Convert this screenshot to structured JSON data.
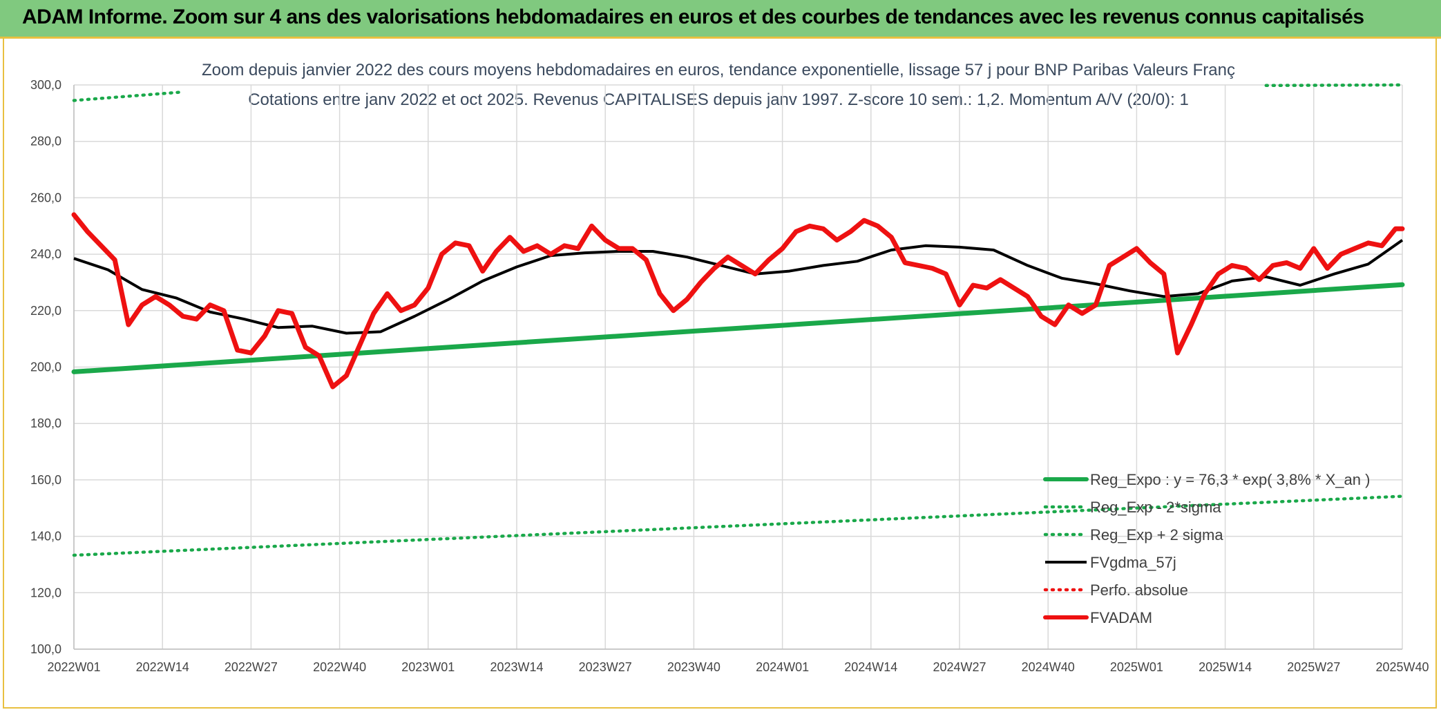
{
  "header": {
    "title": "ADAM Informe. Zoom sur 4 ans des valorisations hebdomadaires en euros et des courbes de tendances avec les revenus connus capitalisés"
  },
  "chart_data": {
    "type": "line",
    "title": "Zoom depuis janvier 2022 des cours moyens hebdomadaires en euros, tendance exponentielle, lissage 57 j pour BNP Paribas Valeurs Franç",
    "subtitle": "Cotations entre janv 2022 et oct 2025. Revenus CAPITALISES depuis janv 1997. Z-score 10 sem.: 1,2. Momentum A/V (20/0): 1",
    "ylim": [
      100,
      300
    ],
    "y_ticks": [
      "100,0",
      "120,0",
      "140,0",
      "160,0",
      "180,0",
      "200,0",
      "220,0",
      "240,0",
      "260,0",
      "280,0",
      "300,0"
    ],
    "x_tick_labels": [
      "2022W01",
      "2022W14",
      "2022W27",
      "2022W40",
      "2023W01",
      "2023W14",
      "2023W27",
      "2023W40",
      "2024W01",
      "2024W14",
      "2024W27",
      "2024W40",
      "2025W01",
      "2025W14",
      "2025W27",
      "2025W40"
    ],
    "grid": true,
    "legend_position": "bottom-right",
    "series": [
      {
        "name": "Reg_Expo : y = 76,3 * exp( 3,8% *  X_an )",
        "color": "#1aa84a",
        "style": "solid-thick",
        "x": [
          0,
          195
        ],
        "values": [
          198.3,
          229.2
        ]
      },
      {
        "name": "Reg_Exp - 2*sigma",
        "color": "#1aa84a",
        "style": "dotted",
        "x": [
          0,
          195
        ],
        "values": [
          133.3,
          154.2
        ]
      },
      {
        "name": "Reg_Exp + 2 sigma",
        "color": "#1aa84a",
        "style": "dotted",
        "segments": [
          {
            "x": [
              0,
              16
            ],
            "values": [
              294.5,
              297.5
            ]
          },
          {
            "x": [
              175,
              195
            ],
            "values": [
              299.8,
              300.0
            ]
          }
        ]
      },
      {
        "name": "FVgdma_57j",
        "color": "#000000",
        "style": "solid",
        "x": [
          0,
          5,
          10,
          15,
          20,
          25,
          30,
          35,
          40,
          45,
          50,
          55,
          60,
          65,
          70,
          75,
          80,
          85,
          90,
          95,
          100,
          105,
          110,
          115,
          120,
          125,
          130,
          135,
          140,
          145,
          150,
          155,
          160,
          165,
          170,
          175,
          180,
          185,
          190,
          195
        ],
        "values": [
          238.5,
          234.5,
          227.5,
          224.5,
          219.5,
          217.0,
          214.0,
          214.5,
          212.0,
          212.5,
          218.0,
          224.0,
          230.5,
          235.5,
          239.5,
          240.5,
          241.0,
          241.0,
          239.0,
          236.0,
          233.0,
          234.0,
          236.0,
          237.5,
          241.5,
          243.0,
          242.5,
          241.5,
          236.0,
          231.5,
          229.5,
          227.0,
          225.0,
          226.0,
          230.5,
          232.0,
          229.0,
          233.0,
          236.5,
          245.0
        ]
      },
      {
        "name": "Perfo. absolue",
        "color": "#ee1111",
        "style": "dotted",
        "x": [],
        "values": []
      },
      {
        "name": "FVADAM",
        "color": "#ee1111",
        "style": "solid-thick",
        "x": [
          0,
          2,
          4,
          6,
          8,
          10,
          12,
          14,
          16,
          18,
          20,
          22,
          24,
          26,
          28,
          30,
          32,
          34,
          36,
          38,
          40,
          42,
          44,
          46,
          48,
          50,
          52,
          54,
          56,
          58,
          60,
          62,
          64,
          66,
          68,
          70,
          72,
          74,
          76,
          78,
          80,
          82,
          84,
          86,
          88,
          90,
          92,
          94,
          96,
          98,
          100,
          102,
          104,
          106,
          108,
          110,
          112,
          114,
          116,
          118,
          120,
          122,
          124,
          126,
          128,
          130,
          132,
          134,
          136,
          138,
          140,
          142,
          144,
          146,
          148,
          150,
          152,
          154,
          156,
          158,
          160,
          162,
          164,
          166,
          168,
          170,
          172,
          174,
          176,
          178,
          180,
          182,
          184,
          186,
          188,
          190,
          192,
          194,
          195
        ],
        "values": [
          254,
          248,
          243,
          238,
          215,
          222,
          225,
          222,
          218,
          217,
          222,
          220,
          206,
          205,
          211,
          220,
          219,
          207,
          204,
          193,
          197,
          208,
          219,
          226,
          220,
          222,
          228,
          240,
          244,
          243,
          234,
          241,
          246,
          241,
          243,
          240,
          243,
          242,
          250,
          245,
          242,
          242,
          238,
          226,
          220,
          224,
          230,
          235,
          239,
          236,
          233,
          238,
          242,
          248,
          250,
          249,
          245,
          248,
          252,
          250,
          246,
          237,
          236,
          235,
          233,
          222,
          229,
          228,
          231,
          228,
          225,
          218,
          215,
          222,
          219,
          222,
          236,
          239,
          242,
          237,
          233,
          205,
          215,
          226,
          233,
          236,
          235,
          231,
          236,
          237,
          235,
          242,
          235,
          240,
          242,
          244,
          243,
          249,
          249
        ]
      }
    ]
  }
}
